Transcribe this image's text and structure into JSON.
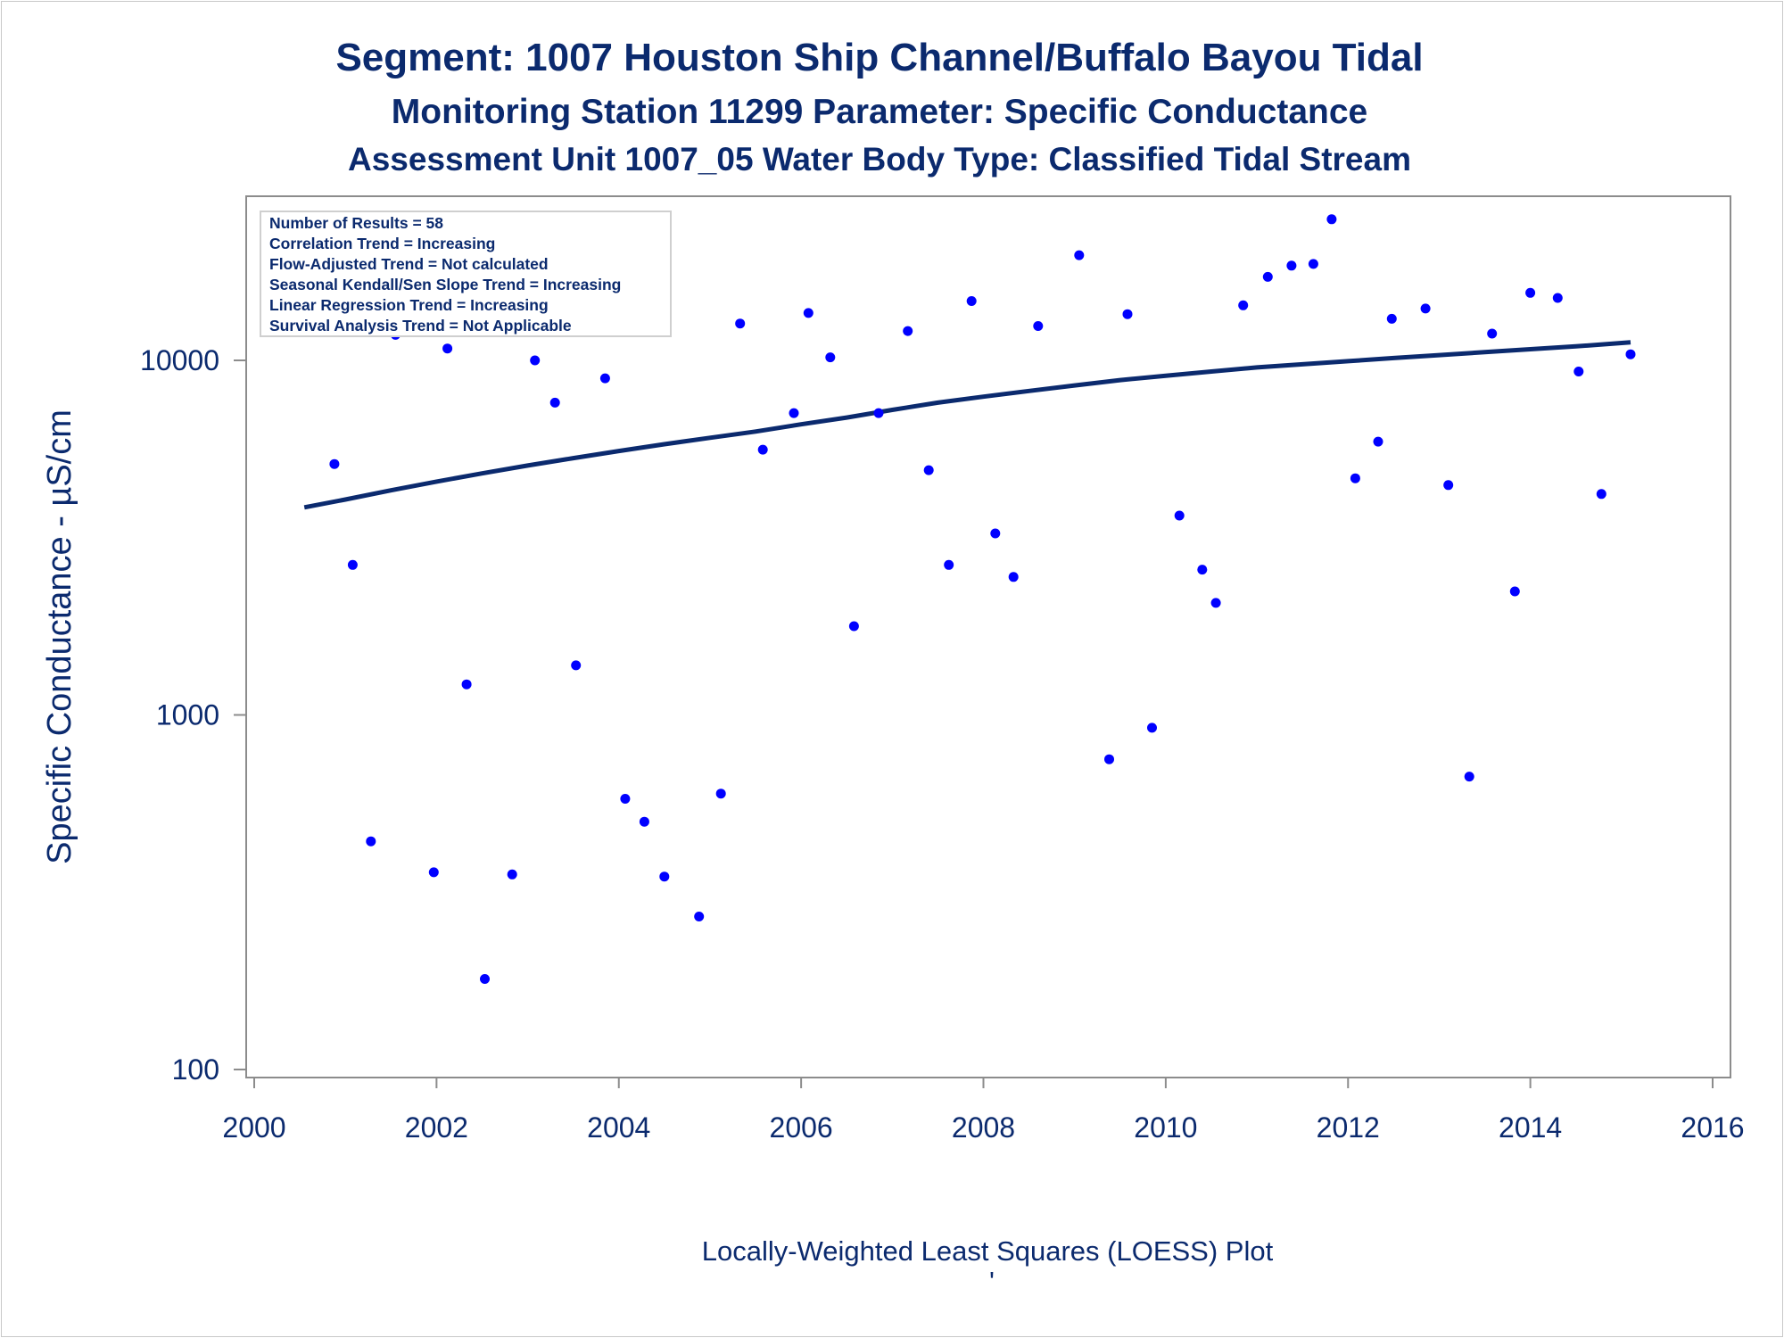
{
  "titles": {
    "line1": "Segment: 1007  Houston Ship Channel/Buffalo Bayou Tidal",
    "line2": "Monitoring Station 11299 Parameter: Specific Conductance",
    "line3": "Assessment Unit 1007_05   Water Body Type: Classified Tidal Stream"
  },
  "info_box": [
    "Number of Results = 58",
    "Correlation Trend = Increasing",
    "Flow-Adjusted Trend = Not calculated",
    "Seasonal Kendall/Sen Slope Trend = Increasing",
    "Linear Regression Trend = Increasing",
    "Survival Analysis Trend = Not Applicable"
  ],
  "footnote": "Locally-Weighted Least Squares (LOESS) Plot",
  "footnote_mark": "'",
  "colors": {
    "text": "#0b2a6e",
    "points": "#0000ff",
    "trend": "#0b2a6e",
    "axis": "#8c8c8c"
  },
  "chart_data": {
    "type": "scatter",
    "xlabel": "",
    "ylabel": "Specific Conductance -  µS/cm",
    "xlim": [
      2000,
      2016
    ],
    "ylim": [
      100,
      25000
    ],
    "y_scale": "log",
    "x_ticks": [
      2000,
      2002,
      2004,
      2006,
      2008,
      2010,
      2012,
      2014,
      2016
    ],
    "x_tick_labels": [
      "2000",
      "2002",
      "2004",
      "2006",
      "2008",
      "2010",
      "2012",
      "2014",
      "2016"
    ],
    "y_ticks": [
      100,
      1000,
      10000
    ],
    "y_tick_labels": [
      "100",
      "1000",
      "10000"
    ],
    "series": [
      {
        "type": "scatter",
        "points": [
          [
            2000.55,
            13000
          ],
          [
            2000.88,
            5100
          ],
          [
            2001.08,
            2650
          ],
          [
            2001.28,
            440
          ],
          [
            2001.55,
            11800
          ],
          [
            2001.97,
            360
          ],
          [
            2002.12,
            10800
          ],
          [
            2002.33,
            1220
          ],
          [
            2002.53,
            180
          ],
          [
            2002.83,
            355
          ],
          [
            2003.08,
            10000
          ],
          [
            2003.3,
            7600
          ],
          [
            2003.53,
            1380
          ],
          [
            2003.85,
            8900
          ],
          [
            2004.07,
            580
          ],
          [
            2004.28,
            500
          ],
          [
            2004.5,
            350
          ],
          [
            2004.88,
            270
          ],
          [
            2005.12,
            600
          ],
          [
            2005.33,
            12700
          ],
          [
            2005.58,
            5600
          ],
          [
            2005.92,
            7100
          ],
          [
            2006.08,
            13600
          ],
          [
            2006.32,
            10200
          ],
          [
            2006.58,
            1780
          ],
          [
            2006.85,
            7100
          ],
          [
            2007.17,
            12100
          ],
          [
            2007.4,
            4900
          ],
          [
            2007.62,
            2650
          ],
          [
            2007.87,
            14700
          ],
          [
            2008.13,
            3250
          ],
          [
            2008.33,
            2450
          ],
          [
            2008.6,
            12500
          ],
          [
            2009.05,
            19800
          ],
          [
            2009.38,
            750
          ],
          [
            2009.58,
            13500
          ],
          [
            2009.85,
            920
          ],
          [
            2010.15,
            3650
          ],
          [
            2010.4,
            2570
          ],
          [
            2010.55,
            2070
          ],
          [
            2010.85,
            14300
          ],
          [
            2011.12,
            17200
          ],
          [
            2011.38,
            18500
          ],
          [
            2011.62,
            18700
          ],
          [
            2011.82,
            25000
          ],
          [
            2012.08,
            4650
          ],
          [
            2012.33,
            5900
          ],
          [
            2012.48,
            13100
          ],
          [
            2012.85,
            14000
          ],
          [
            2013.1,
            4450
          ],
          [
            2013.33,
            670
          ],
          [
            2013.58,
            11900
          ],
          [
            2013.83,
            2230
          ],
          [
            2014.0,
            15500
          ],
          [
            2014.3,
            15000
          ],
          [
            2014.53,
            9300
          ],
          [
            2014.78,
            4200
          ],
          [
            2015.1,
            10400
          ]
        ]
      },
      {
        "type": "line",
        "points": [
          [
            2000.55,
            3850
          ],
          [
            2001.0,
            4050
          ],
          [
            2001.5,
            4300
          ],
          [
            2002.0,
            4550
          ],
          [
            2002.5,
            4800
          ],
          [
            2003.0,
            5050
          ],
          [
            2003.5,
            5300
          ],
          [
            2004.0,
            5550
          ],
          [
            2004.5,
            5800
          ],
          [
            2005.0,
            6050
          ],
          [
            2005.5,
            6300
          ],
          [
            2006.0,
            6600
          ],
          [
            2006.5,
            6900
          ],
          [
            2007.0,
            7250
          ],
          [
            2007.5,
            7600
          ],
          [
            2008.0,
            7900
          ],
          [
            2008.5,
            8200
          ],
          [
            2009.0,
            8500
          ],
          [
            2009.5,
            8800
          ],
          [
            2010.0,
            9050
          ],
          [
            2010.5,
            9300
          ],
          [
            2011.0,
            9550
          ],
          [
            2011.5,
            9750
          ],
          [
            2012.0,
            9950
          ],
          [
            2012.5,
            10150
          ],
          [
            2013.0,
            10350
          ],
          [
            2013.5,
            10550
          ],
          [
            2014.0,
            10750
          ],
          [
            2014.5,
            10950
          ],
          [
            2015.1,
            11250
          ]
        ]
      }
    ]
  }
}
